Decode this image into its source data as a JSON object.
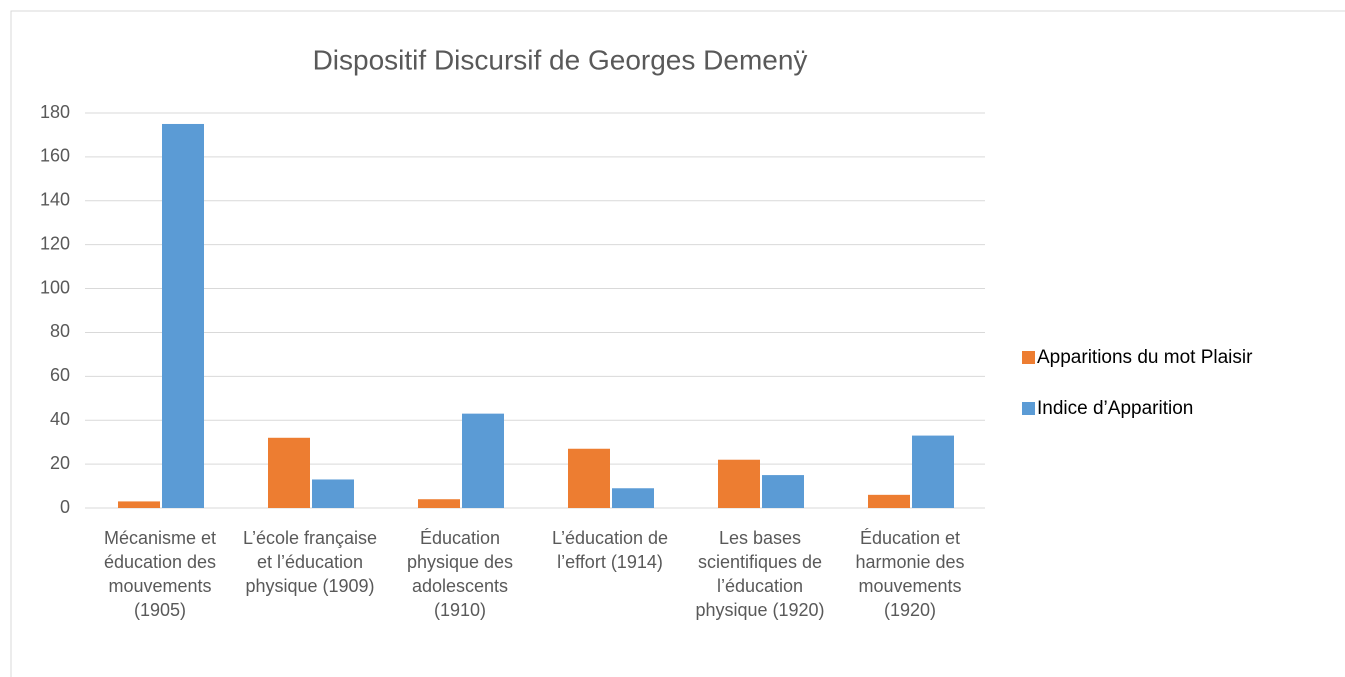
{
  "chart_data": {
    "type": "bar",
    "title": "Dispositif Discursif de Georges Demenÿ",
    "categories": [
      "Mécanisme et éducation des mouvements (1905)",
      "L’école française et l’éducation physique (1909)",
      "Éducation physique des adolescents (1910)",
      "L’éducation de l’effort (1914)",
      "Les bases scientifiques de l’éducation physique (1920)",
      "Éducation et harmonie des mouvements (1920)"
    ],
    "series": [
      {
        "name": "Apparitions du mot Plaisir",
        "color": "#ed7d31",
        "values": [
          3,
          32,
          4,
          27,
          22,
          6
        ]
      },
      {
        "name": "Indice d’Apparition",
        "color": "#5b9bd5",
        "values": [
          175,
          13,
          43,
          9,
          15,
          33
        ]
      }
    ],
    "ylim": [
      0,
      180
    ],
    "yticks": [
      0,
      20,
      40,
      60,
      80,
      100,
      120,
      140,
      160,
      180
    ],
    "grid": true,
    "legend": "right"
  }
}
